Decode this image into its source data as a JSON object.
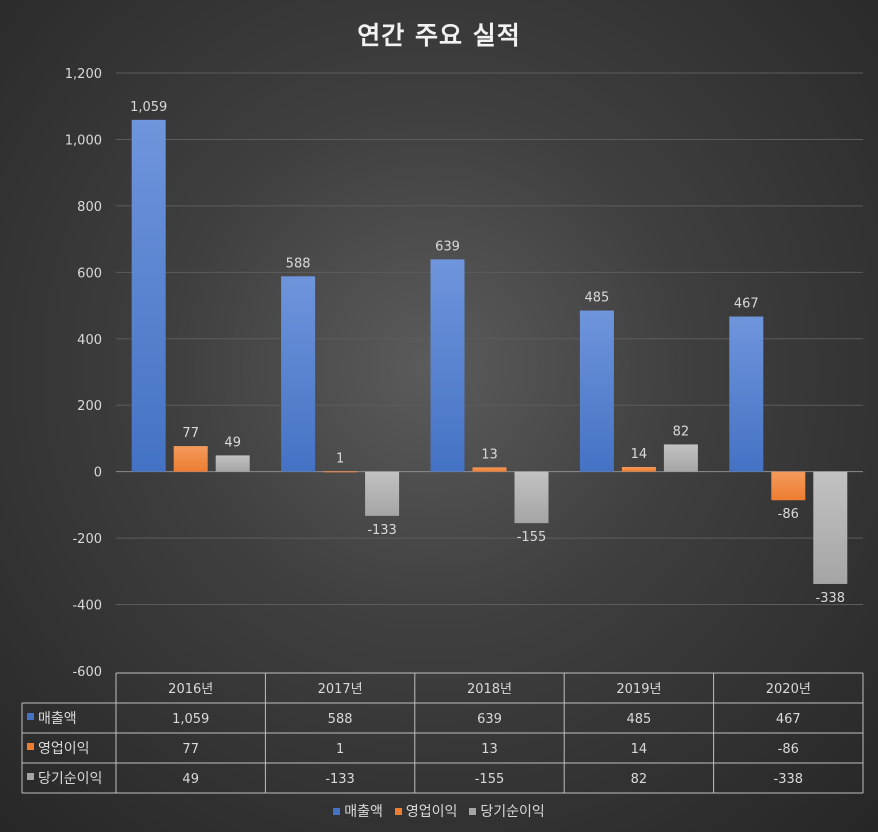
{
  "chart_data": {
    "type": "bar",
    "title": "연간 주요 실적",
    "categories": [
      "2016년",
      "2017년",
      "2018년",
      "2019년",
      "2020년"
    ],
    "series": [
      {
        "name": "매출액",
        "color": "#4472c4",
        "values": [
          1059,
          588,
          639,
          485,
          467
        ]
      },
      {
        "name": "영업이익",
        "color": "#ed7d31",
        "values": [
          77,
          1,
          13,
          14,
          -86
        ]
      },
      {
        "name": "당기순이익",
        "color": "#a5a5a5",
        "values": [
          49,
          -133,
          -155,
          82,
          -338
        ]
      }
    ],
    "ylim": [
      -600,
      1200
    ],
    "yticks": [
      -600,
      -400,
      -200,
      0,
      200,
      400,
      600,
      800,
      1000,
      1200
    ],
    "grid": true,
    "legend_position": "bottom",
    "data_table": true
  }
}
